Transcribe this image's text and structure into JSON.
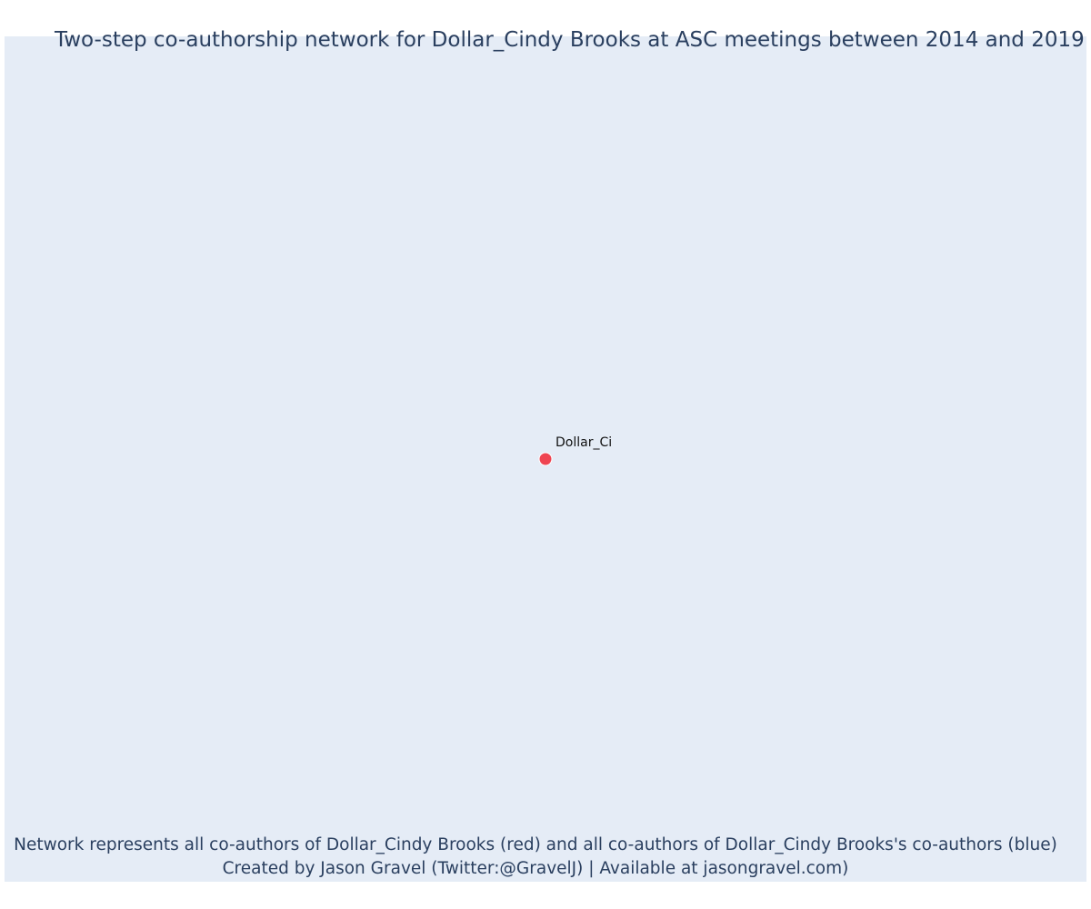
{
  "colors": {
    "plot_background": "#e5ecf6",
    "title_text": "#2a3f5f",
    "center_node": "#ef4451",
    "node_outline": "#ffffff",
    "node_label": "#111111"
  },
  "chart_data": {
    "type": "scatter",
    "title": "Two-step co-authorship network for Dollar_Cindy Brooks at ASC meetings between 2014 and 2019",
    "xlabel": "",
    "ylabel": "",
    "grid": false,
    "legend": "none",
    "xlim": [
      -1,
      1
    ],
    "ylim": [
      -1,
      1
    ],
    "nodes": [
      {
        "label": "Dollar_Ci",
        "x": 0,
        "y": 0,
        "role": "center",
        "color": "#ef4451"
      }
    ],
    "edges": []
  },
  "caption": {
    "line1": "Network represents all co-authors of Dollar_Cindy Brooks (red) and all co-authors of Dollar_Cindy Brooks's co-authors (blue)",
    "line2": "Created by Jason Gravel (Twitter:@GravelJ) | Available at jasongravel.com)"
  }
}
